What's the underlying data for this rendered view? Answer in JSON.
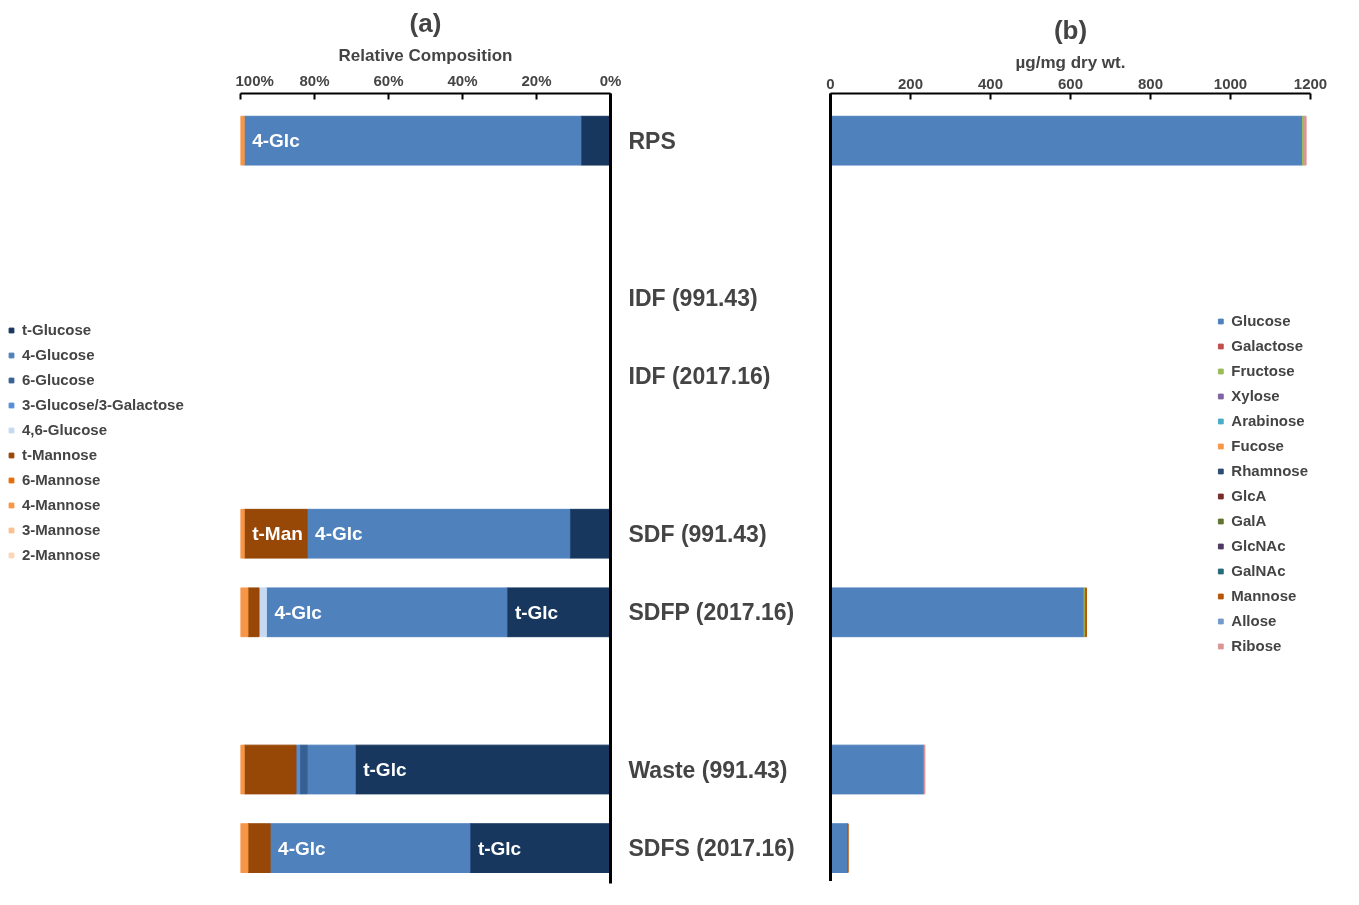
{
  "chart_data": [
    {
      "type": "bar",
      "orientation": "horizontal",
      "stacked": true,
      "title": "(a)",
      "xlabel": "Relative Composition",
      "categories": [
        "RPS",
        null,
        "IDF (991.43)",
        "IDF (2017.16)",
        null,
        "SDF (991.43)",
        "SDFP (2017.16)",
        null,
        "Waste (991.43)",
        "SDFS (2017.16)"
      ],
      "xlim": [
        100,
        0
      ],
      "xticks": [
        {
          "value": 100,
          "label": "100%"
        },
        {
          "value": 80,
          "label": "80%"
        },
        {
          "value": 60,
          "label": "60%"
        },
        {
          "value": 40,
          "label": "40%"
        },
        {
          "value": 20,
          "label": "20%"
        },
        {
          "value": 0,
          "label": "0%"
        }
      ],
      "legend": "left",
      "grid": false,
      "annotations": [
        {
          "text": "4-Glc",
          "x": 99,
          "y": "RPS"
        },
        {
          "text": "4-Glc",
          "x": 82,
          "y": "SDF (991.43)"
        },
        {
          "text": "t-Man",
          "x": 99,
          "y": "SDF (991.43)"
        },
        {
          "text": "4-Glc",
          "x": 93,
          "y": "SDFP (2017.16)"
        },
        {
          "text": "t-Glc",
          "x": 28,
          "y": "SDFP (2017.16)"
        },
        {
          "text": "t-Glc",
          "x": 69,
          "y": "Waste (991.43)"
        },
        {
          "text": "4-Glc",
          "x": 92,
          "y": "SDFS (2017.16)"
        },
        {
          "text": "t-Glc",
          "x": 38,
          "y": "SDFS (2017.16)"
        }
      ],
      "series": [
        {
          "name": "t-Glucose",
          "color": "#17375e",
          "values": [
            8,
            null,
            null,
            null,
            null,
            11,
            28,
            null,
            69,
            38
          ]
        },
        {
          "name": "4-Glucose",
          "color": "#4f81bd",
          "values": [
            91,
            null,
            null,
            null,
            null,
            71,
            65,
            null,
            13,
            54
          ]
        },
        {
          "name": "6-Glucose",
          "color": "#376092",
          "values": [
            null,
            null,
            null,
            null,
            null,
            null,
            null,
            null,
            2,
            null
          ]
        },
        {
          "name": "3-Glucose/3-Galactose",
          "color": "#558ed5",
          "values": [
            null,
            null,
            null,
            null,
            null,
            null,
            null,
            null,
            1,
            null
          ]
        },
        {
          "name": "4,6-Glucose",
          "color": "#c6d9f1",
          "values": [
            null,
            null,
            null,
            null,
            null,
            null,
            2,
            null,
            null,
            null
          ]
        },
        {
          "name": "t-Mannose",
          "color": "#974706",
          "values": [
            null,
            null,
            null,
            null,
            null,
            17,
            3,
            null,
            14,
            6
          ]
        },
        {
          "name": "6-Mannose",
          "color": "#e46c0a",
          "values": [
            null,
            null,
            null,
            null,
            null,
            null,
            null,
            null,
            null,
            null
          ]
        },
        {
          "name": "4-Mannose",
          "color": "#f79646",
          "values": [
            1,
            null,
            null,
            null,
            null,
            1,
            2,
            null,
            1,
            2
          ]
        },
        {
          "name": "3-Mannose",
          "color": "#fac090",
          "values": [
            null,
            null,
            null,
            null,
            null,
            null,
            null,
            null,
            null,
            null
          ]
        },
        {
          "name": "2-Mannose",
          "color": "#fcd5b5",
          "values": [
            null,
            null,
            null,
            null,
            null,
            null,
            null,
            null,
            null,
            null
          ]
        }
      ]
    },
    {
      "type": "bar",
      "orientation": "horizontal",
      "stacked": true,
      "title": "(b)",
      "xlabel": "µg/mg dry wt.",
      "xlim": [
        0,
        1200
      ],
      "xticks": [
        0,
        200,
        400,
        600,
        800,
        1000,
        1200
      ],
      "categories": [
        null,
        null,
        null,
        null,
        null,
        null,
        null,
        null,
        null,
        null
      ],
      "legend": "right",
      "grid": false,
      "tick_labels": "x",
      "series": [
        {
          "name": "Glucose",
          "color": "#4f81bd",
          "values": [
            1180,
            null,
            null,
            null,
            null,
            null,
            634,
            null,
            234,
            43
          ]
        },
        {
          "name": "Galactose",
          "color": "#c0504d",
          "values": [
            null,
            null,
            null,
            null,
            null,
            null,
            null,
            null,
            null,
            null
          ]
        },
        {
          "name": "Fructose",
          "color": "#9bbb59",
          "values": [
            5,
            null,
            null,
            null,
            null,
            null,
            3,
            null,
            null,
            null
          ]
        },
        {
          "name": "Xylose",
          "color": "#8064a2",
          "values": [
            null,
            null,
            null,
            null,
            null,
            null,
            null,
            null,
            null,
            null
          ]
        },
        {
          "name": "Arabinose",
          "color": "#4bacc6",
          "values": [
            null,
            null,
            null,
            null,
            null,
            null,
            null,
            null,
            null,
            null
          ]
        },
        {
          "name": "Fucose",
          "color": "#f79646",
          "values": [
            null,
            null,
            null,
            null,
            null,
            null,
            null,
            null,
            null,
            null
          ]
        },
        {
          "name": "Rhamnose",
          "color": "#2c4d75",
          "values": [
            null,
            null,
            null,
            null,
            null,
            null,
            null,
            null,
            null,
            null
          ]
        },
        {
          "name": "GlcA",
          "color": "#772c2a",
          "values": [
            null,
            null,
            null,
            null,
            null,
            null,
            null,
            null,
            null,
            null
          ]
        },
        {
          "name": "GalA",
          "color": "#5f7530",
          "values": [
            null,
            null,
            null,
            null,
            null,
            null,
            null,
            null,
            null,
            null
          ]
        },
        {
          "name": "GlcNAc",
          "color": "#4d3b62",
          "values": [
            null,
            null,
            null,
            null,
            null,
            null,
            null,
            null,
            null,
            null
          ]
        },
        {
          "name": "GalNAc",
          "color": "#276a7c",
          "values": [
            null,
            null,
            null,
            null,
            null,
            null,
            null,
            null,
            null,
            null
          ]
        },
        {
          "name": "Mannose",
          "color": "#b65708",
          "values": [
            null,
            null,
            null,
            null,
            null,
            null,
            3,
            null,
            null,
            1
          ]
        },
        {
          "name": "Allose",
          "color": "#729aca",
          "values": [
            null,
            null,
            null,
            null,
            null,
            null,
            null,
            null,
            null,
            null
          ]
        },
        {
          "name": "Ribose",
          "color": "#d99694",
          "values": [
            4,
            null,
            null,
            null,
            null,
            null,
            null,
            null,
            2,
            null
          ]
        }
      ]
    }
  ]
}
